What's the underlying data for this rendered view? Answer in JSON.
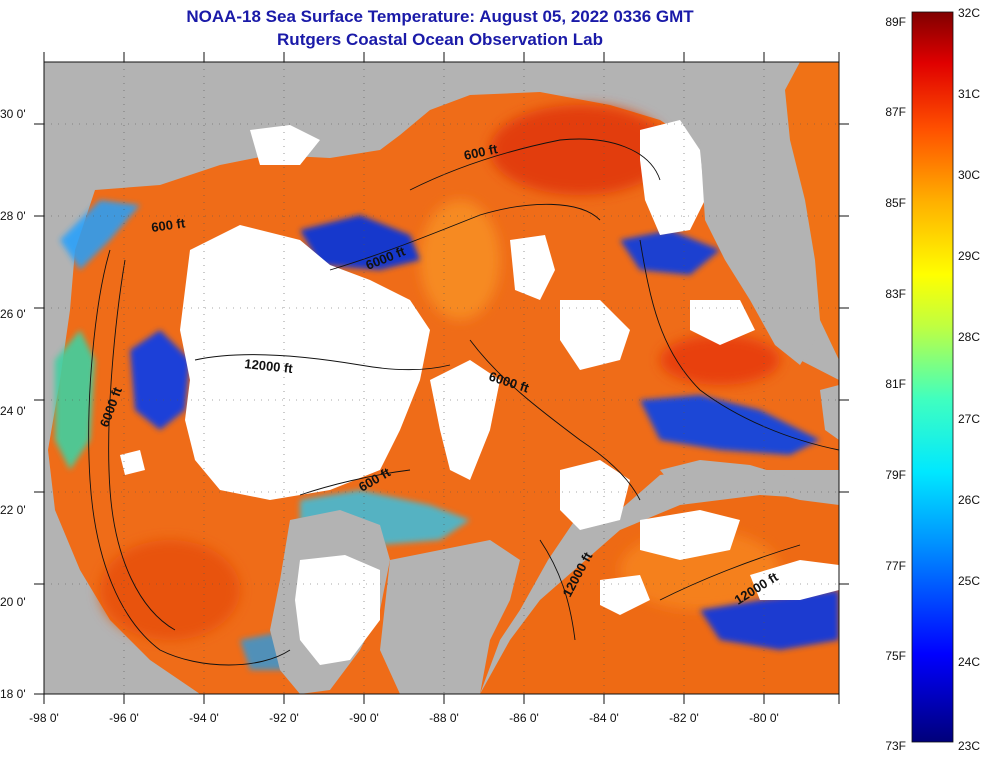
{
  "header": {
    "title": "NOAA-18 Sea Surface Temperature:  August 05, 2022 0336 GMT",
    "subtitle": "Rutgers Coastal Ocean Observation Lab"
  },
  "map": {
    "lon_ticks": [
      "-98 0'",
      "-96 0'",
      "-94 0'",
      "-92 0'",
      "-90 0'",
      "-88 0'",
      "-86 0'",
      "-84 0'",
      "-82 0'",
      "-80 0'"
    ],
    "lat_ticks": [
      "18 0'",
      "20 0'",
      "22 0'",
      "24 0'",
      "26 0'",
      "28 0'",
      "30 0'"
    ],
    "contour_labels": [
      "600 ft",
      "600 ft",
      "6000 ft",
      "12000 ft",
      "6000 ft",
      "6000 ft",
      "600 ft",
      "12000 ft",
      "12000 ft"
    ]
  },
  "colorbar": {
    "fahrenheit_labels": [
      "89F",
      "87F",
      "85F",
      "83F",
      "81F",
      "79F",
      "77F",
      "75F",
      "73F"
    ],
    "celsius_labels": [
      "32C",
      "31C",
      "30C",
      "29C",
      "28C",
      "27C",
      "26C",
      "25C",
      "24C",
      "23C"
    ]
  },
  "colors": {
    "land": "#b3b3b3",
    "cloud": "#ffffff",
    "title": "#1a1aa8",
    "warm": "#f06a10",
    "cool": "#1c3fd0"
  }
}
